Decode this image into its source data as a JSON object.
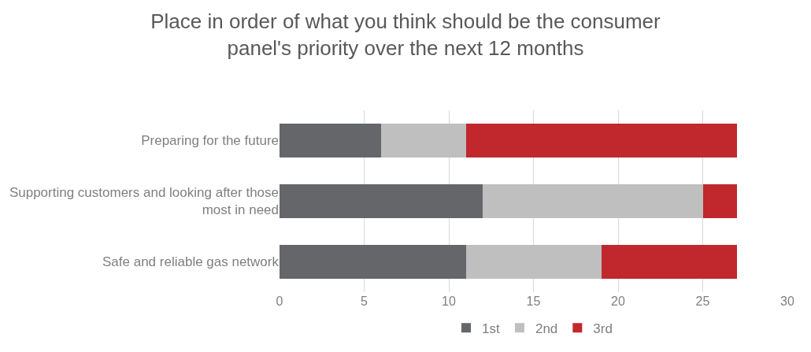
{
  "chart_data": {
    "type": "bar",
    "orientation": "horizontal",
    "stacked": true,
    "title": "Place in order of what you think should be the consumer panel's priority over the next 12 months",
    "categories": [
      "Preparing for the future",
      "Supporting customers and looking after those most in need",
      "Safe and reliable gas network"
    ],
    "series": [
      {
        "name": "1st",
        "color": "#64666a",
        "values": [
          6,
          12,
          11
        ]
      },
      {
        "name": "2nd",
        "color": "#bfbfbf",
        "values": [
          5,
          13,
          8
        ]
      },
      {
        "name": "3rd",
        "color": "#c0282d",
        "values": [
          16,
          2,
          8
        ]
      }
    ],
    "xlim": [
      0,
      30
    ],
    "xticks": [
      0,
      5,
      10,
      15,
      20,
      25,
      30
    ],
    "grid": "x",
    "legend": "bottom"
  }
}
